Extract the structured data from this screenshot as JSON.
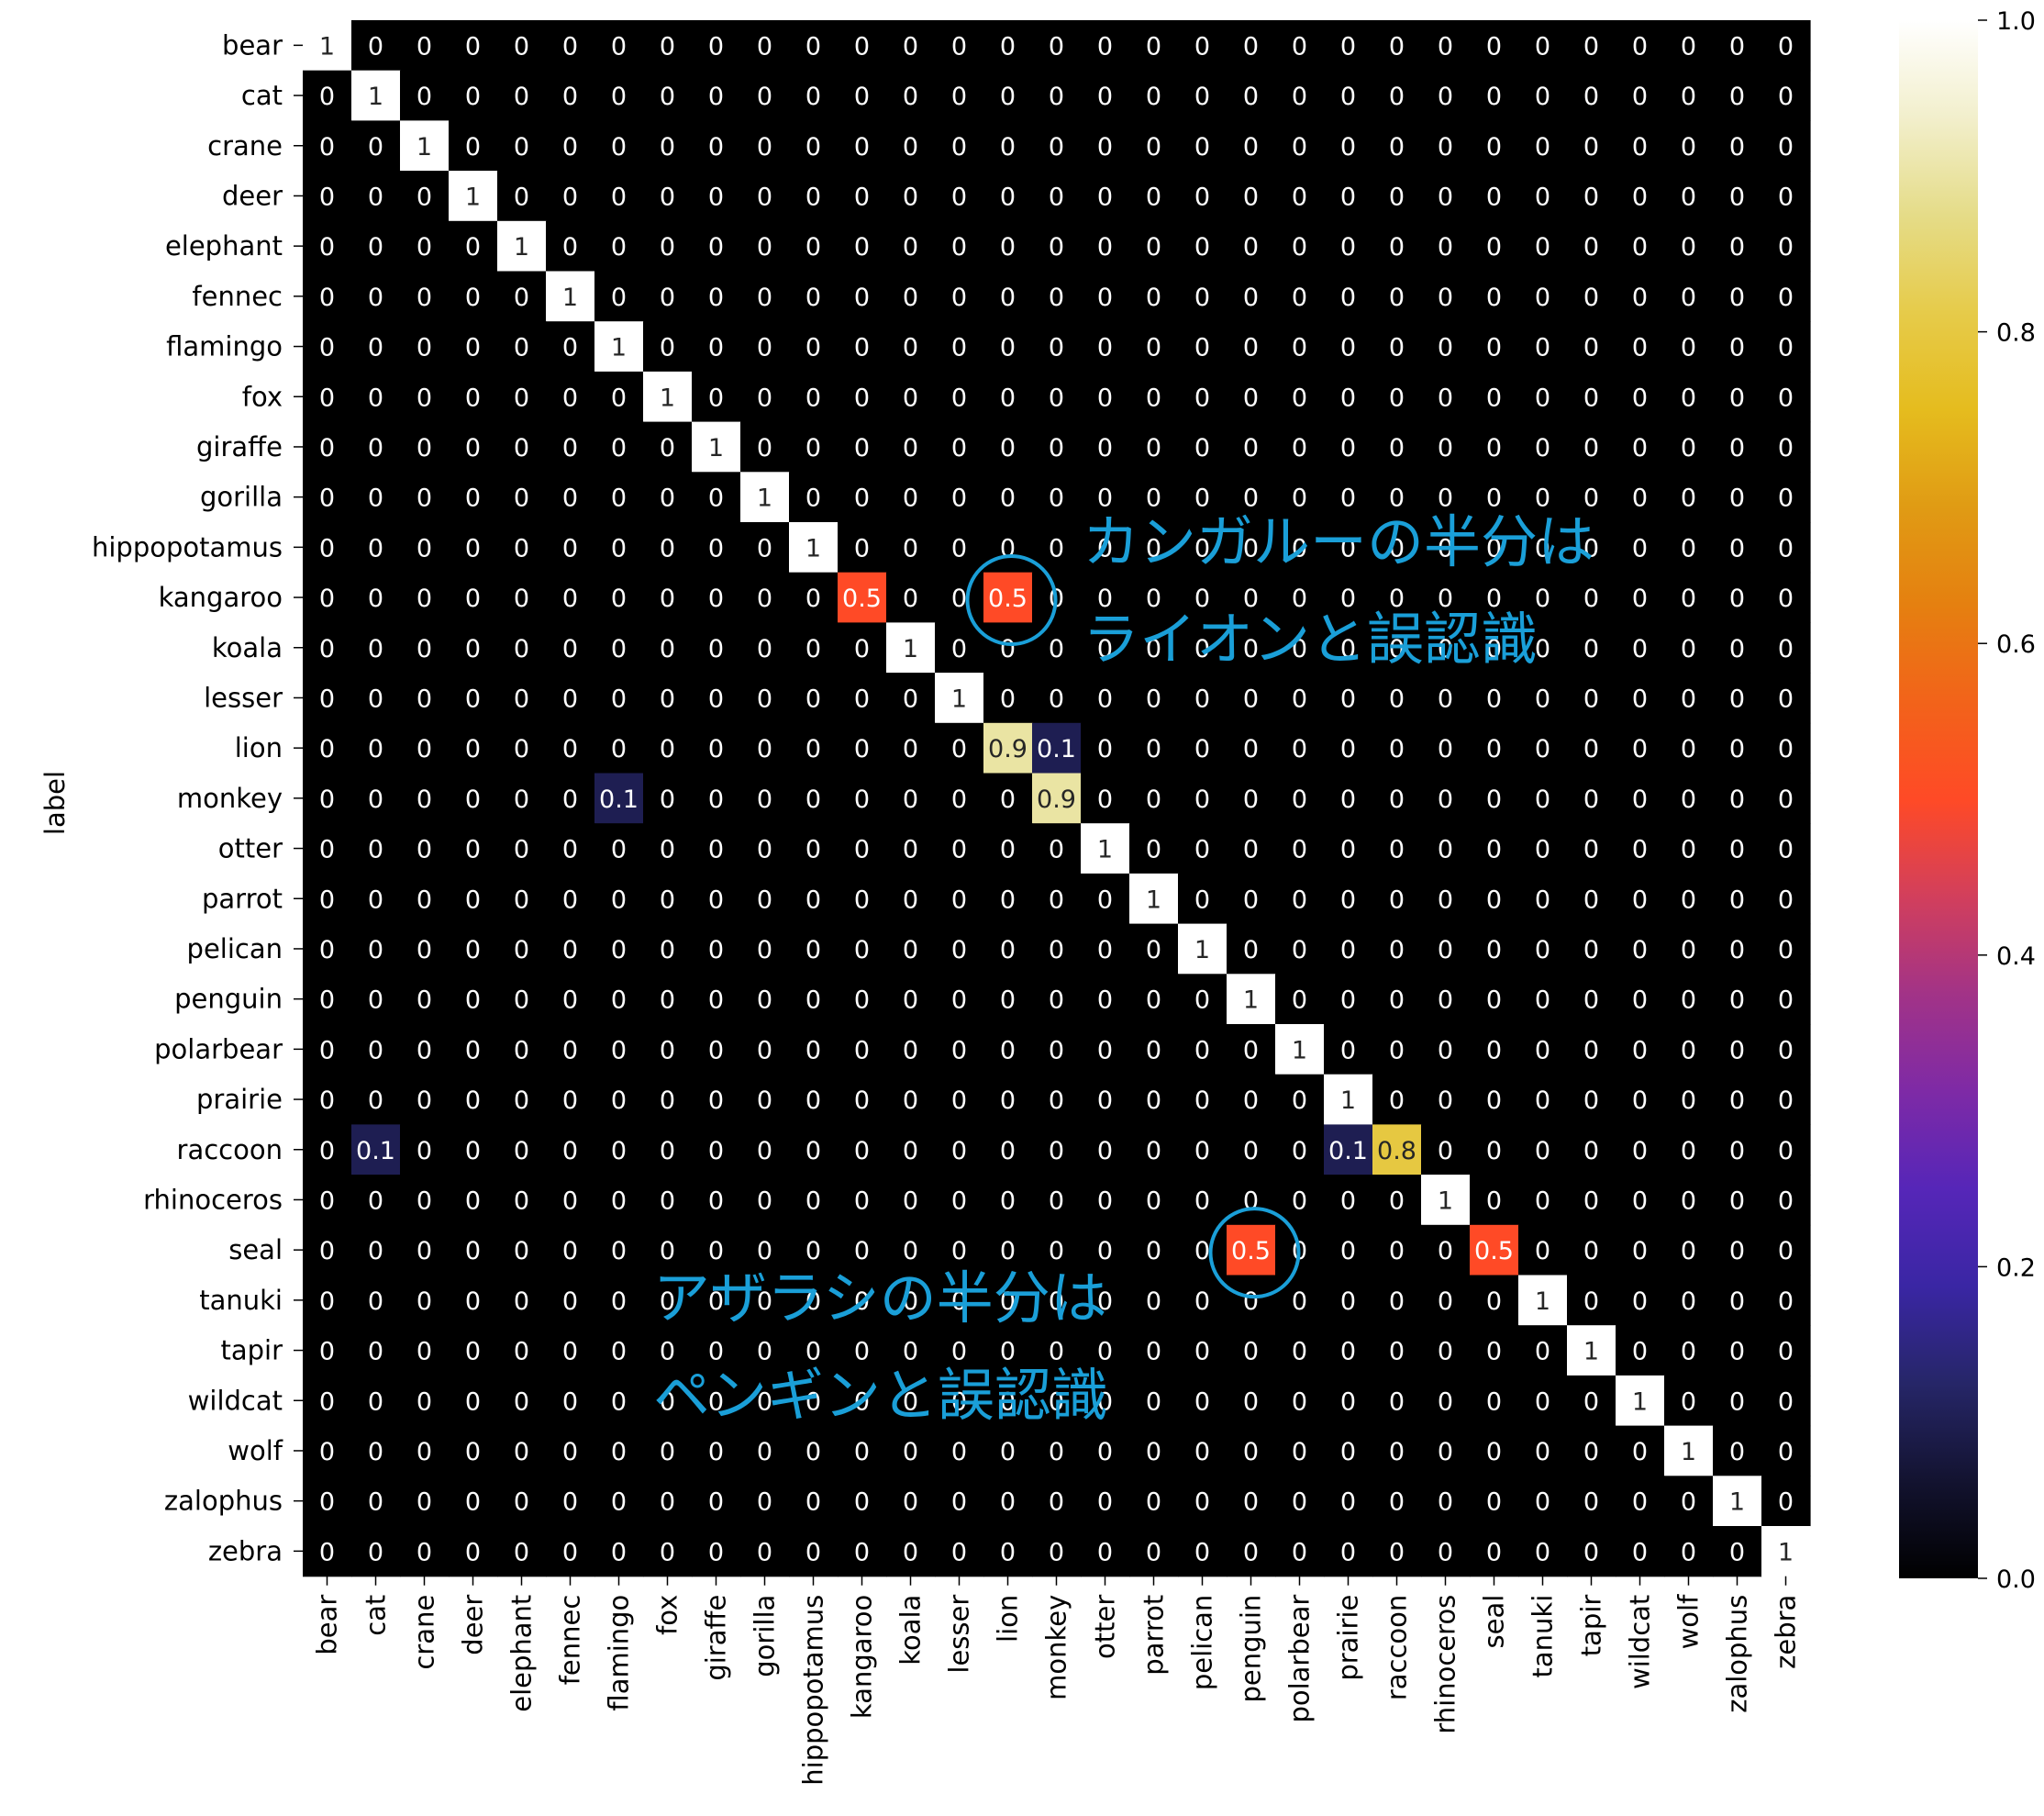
{
  "chart_data": {
    "type": "heatmap",
    "ylabel": "label",
    "xlabel": "",
    "categories": [
      "bear",
      "cat",
      "crane",
      "deer",
      "elephant",
      "fennec",
      "flamingo",
      "fox",
      "giraffe",
      "gorilla",
      "hippopotamus",
      "kangaroo",
      "koala",
      "lesser",
      "lion",
      "monkey",
      "otter",
      "parrot",
      "pelican",
      "penguin",
      "polarbear",
      "prairie",
      "raccoon",
      "rhinoceros",
      "seal",
      "tanuki",
      "tapir",
      "wildcat",
      "wolf",
      "zalophus",
      "zebra"
    ],
    "nonzero": [
      {
        "row": "kangaroo",
        "col": "kangaroo",
        "value": 0.5
      },
      {
        "row": "kangaroo",
        "col": "lion",
        "value": 0.5
      },
      {
        "row": "lion",
        "col": "lion",
        "value": 0.9
      },
      {
        "row": "lion",
        "col": "monkey",
        "value": 0.1
      },
      {
        "row": "monkey",
        "col": "flamingo",
        "value": 0.1
      },
      {
        "row": "monkey",
        "col": "monkey",
        "value": 0.9
      },
      {
        "row": "raccoon",
        "col": "cat",
        "value": 0.1
      },
      {
        "row": "raccoon",
        "col": "prairie",
        "value": 0.1
      },
      {
        "row": "raccoon",
        "col": "raccoon",
        "value": 0.8
      },
      {
        "row": "seal",
        "col": "penguin",
        "value": 0.5
      },
      {
        "row": "seal",
        "col": "seal",
        "value": 0.5
      }
    ],
    "diagonal_default": 1,
    "colormap": "CMRmap",
    "colorbar": {
      "range": [
        0.0,
        1.0
      ],
      "ticks": [
        "0.0",
        "0.2",
        "0.4",
        "0.6",
        "0.8",
        "1.0"
      ]
    },
    "annotations": [
      {
        "lines": [
          "カンガルーの半分は",
          "ライオンと誤認識"
        ],
        "circle_row": "kangaroo",
        "circle_col": "lion"
      },
      {
        "lines": [
          "アザラシの半分は",
          "ペンギンと誤認識"
        ],
        "circle_row": "seal",
        "circle_col": "penguin"
      }
    ],
    "annotation_color": "#1a9fd8"
  }
}
